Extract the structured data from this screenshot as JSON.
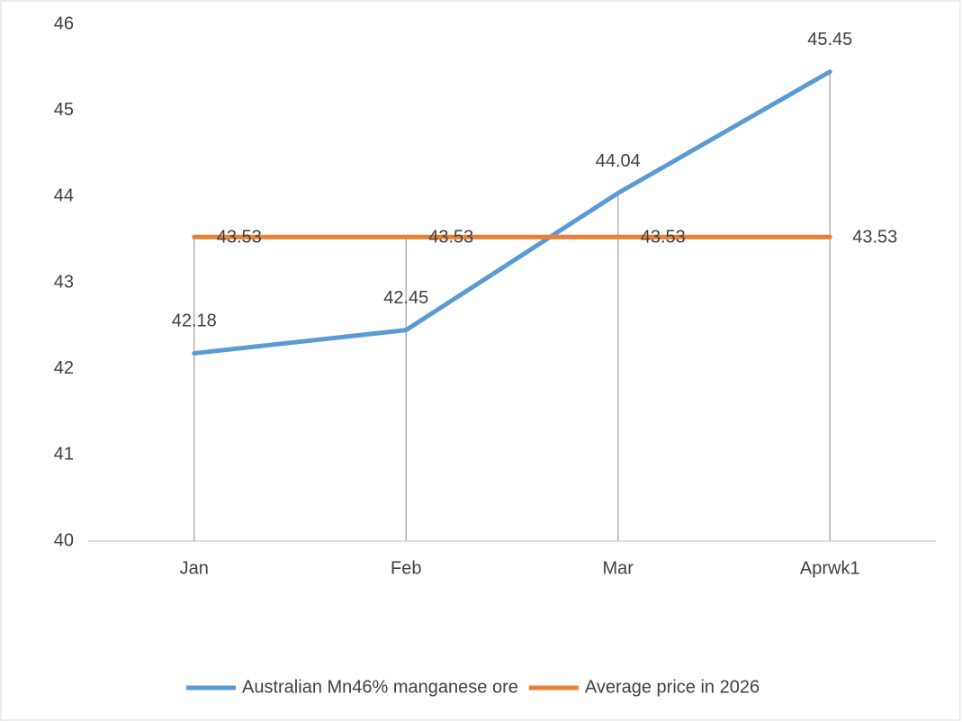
{
  "chart_data": {
    "type": "line",
    "categories": [
      "Jan",
      "Feb",
      "Mar",
      "Aprwk1"
    ],
    "series": [
      {
        "name": "Australian Mn46% manganese ore",
        "color": "#5b9bd5",
        "values": [
          42.18,
          42.45,
          44.04,
          45.45
        ]
      },
      {
        "name": "Average price in 2026",
        "color": "#ed7d31",
        "values": [
          43.53,
          43.53,
          43.53,
          43.53
        ]
      }
    ],
    "ylim": [
      40,
      46
    ],
    "yticks": [
      40,
      41,
      42,
      43,
      44,
      45,
      46
    ],
    "drop_lines": true,
    "legend": "bottom"
  }
}
